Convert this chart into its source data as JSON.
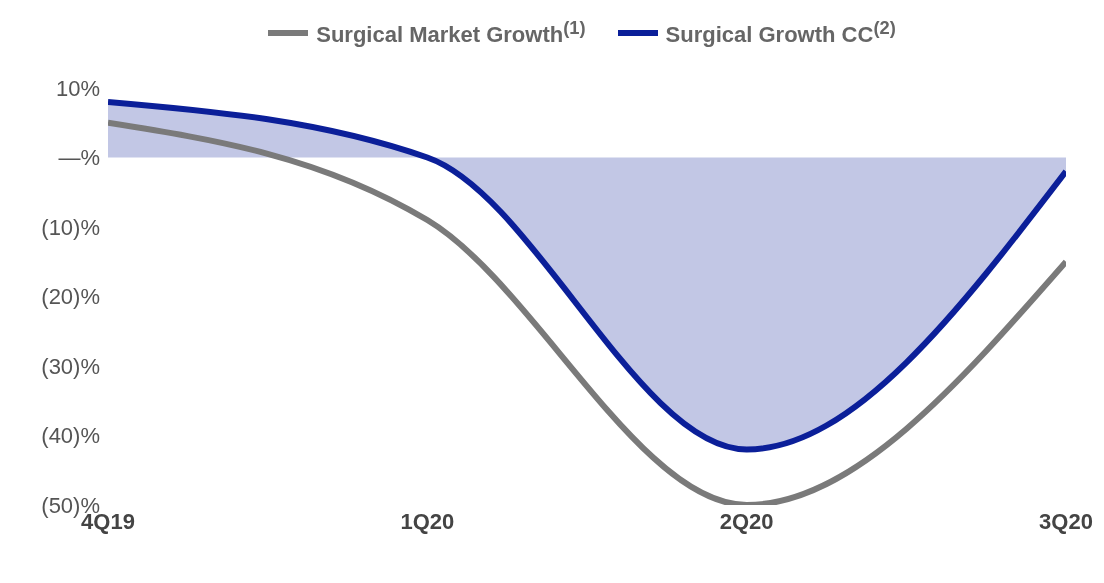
{
  "chart_data": {
    "type": "line",
    "categories": [
      "4Q19",
      "1Q20",
      "2Q20",
      "3Q20"
    ],
    "series": [
      {
        "name": "Surgical Market Growth$^{(1)}$",
        "color": "#7a7a7a",
        "values": [
          5,
          -9,
          -50,
          -15
        ]
      },
      {
        "name": "Surgical Growth CC$^{(2)}$",
        "color": "#0b1f99",
        "type": "area",
        "values": [
          8,
          0,
          -42,
          -2
        ]
      }
    ],
    "ylim": [
      -50,
      10
    ],
    "yticks": [
      {
        "value": 10,
        "label": "10%"
      },
      {
        "value": 0,
        "label": "—%"
      },
      {
        "value": -10,
        "label": "(10)%"
      },
      {
        "value": -20,
        "label": "(20)%"
      },
      {
        "value": -30,
        "label": "(30)%"
      },
      {
        "value": -40,
        "label": "(40)%"
      },
      {
        "value": -50,
        "label": "(50)%"
      }
    ],
    "grid": false,
    "legend": "top",
    "marker": "none",
    "line_style": "solid"
  }
}
